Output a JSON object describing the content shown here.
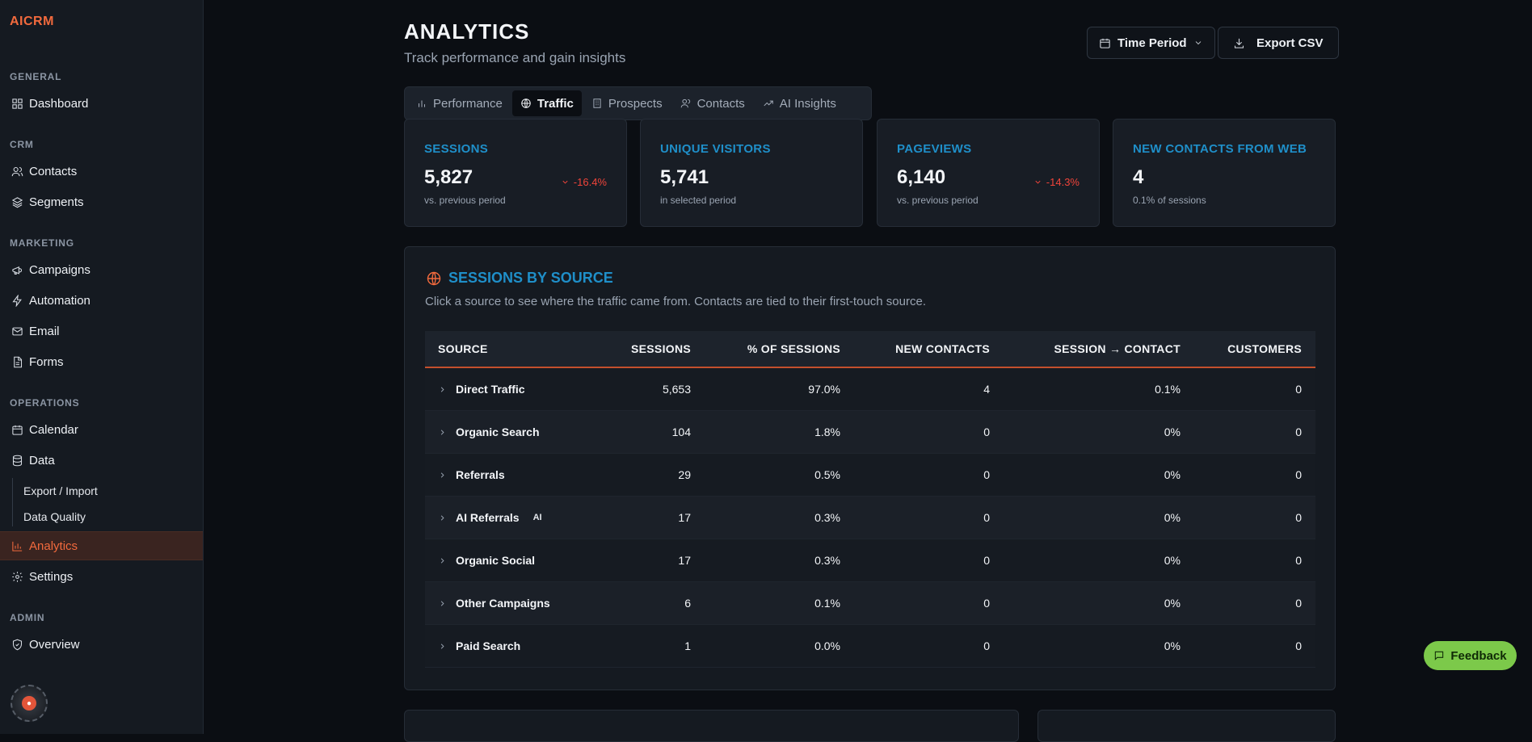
{
  "brand": "AICRM",
  "sidebar": {
    "sections": {
      "general": "GENERAL",
      "crm": "CRM",
      "marketing": "MARKETING",
      "operations": "OPERATIONS",
      "admin": "ADMIN"
    },
    "items": {
      "dashboard": "Dashboard",
      "contacts": "Contacts",
      "segments": "Segments",
      "campaigns": "Campaigns",
      "automation": "Automation",
      "email": "Email",
      "forms": "Forms",
      "calendar": "Calendar",
      "data": "Data",
      "export_import": "Export / Import",
      "data_quality": "Data Quality",
      "analytics": "Analytics",
      "settings": "Settings",
      "overview": "Overview"
    },
    "active": "Analytics"
  },
  "header": {
    "title": "ANALYTICS",
    "subtitle": "Track performance and gain insights",
    "time_period": "Time Period",
    "export_csv": "Export CSV"
  },
  "tabs": [
    {
      "label": "Performance",
      "icon": "bar-chart-icon"
    },
    {
      "label": "Traffic",
      "icon": "globe-icon",
      "active": true
    },
    {
      "label": "Prospects",
      "icon": "building-icon"
    },
    {
      "label": "Contacts",
      "icon": "users-icon"
    },
    {
      "label": "AI Insights",
      "icon": "trend-icon"
    }
  ],
  "cards": [
    {
      "label": "SESSIONS",
      "value": "5,827",
      "note": "vs. previous period",
      "delta": "-16.4%"
    },
    {
      "label": "UNIQUE VISITORS",
      "value": "5,741",
      "note": "in selected period",
      "delta": ""
    },
    {
      "label": "PAGEVIEWS",
      "value": "6,140",
      "note": "vs. previous period",
      "delta": "-14.3%"
    },
    {
      "label": "NEW CONTACTS FROM WEB",
      "value": "4",
      "note": "0.1% of sessions",
      "delta": ""
    }
  ],
  "panel": {
    "title": "SESSIONS BY SOURCE",
    "description": "Click a source to see where the traffic came from. Contacts are tied to their first-touch source.",
    "columns": [
      "SOURCE",
      "SESSIONS",
      "% OF SESSIONS",
      "NEW CONTACTS",
      "SESSION → CONTACT",
      "CUSTOMERS"
    ],
    "rows": [
      {
        "source": "Direct Traffic",
        "sessions": "5,653",
        "pct": "97.0%",
        "new_contacts": "4",
        "conversion": "0.1%",
        "customers": "0",
        "badge": ""
      },
      {
        "source": "Organic Search",
        "sessions": "104",
        "pct": "1.8%",
        "new_contacts": "0",
        "conversion": "0%",
        "customers": "0",
        "badge": ""
      },
      {
        "source": "Referrals",
        "sessions": "29",
        "pct": "0.5%",
        "new_contacts": "0",
        "conversion": "0%",
        "customers": "0",
        "badge": ""
      },
      {
        "source": "AI Referrals",
        "sessions": "17",
        "pct": "0.3%",
        "new_contacts": "0",
        "conversion": "0%",
        "customers": "0",
        "badge": "AI"
      },
      {
        "source": "Organic Social",
        "sessions": "17",
        "pct": "0.3%",
        "new_contacts": "0",
        "conversion": "0%",
        "customers": "0",
        "badge": ""
      },
      {
        "source": "Other Campaigns",
        "sessions": "6",
        "pct": "0.1%",
        "new_contacts": "0",
        "conversion": "0%",
        "customers": "0",
        "badge": ""
      },
      {
        "source": "Paid Search",
        "sessions": "1",
        "pct": "0.0%",
        "new_contacts": "0",
        "conversion": "0%",
        "customers": "0",
        "badge": ""
      }
    ]
  },
  "feedback": "Feedback",
  "colors": {
    "accent": "#f26a3d",
    "label_blue": "#1f8fc9",
    "negative": "#f0443a",
    "feedback_green": "#7cc94a"
  }
}
